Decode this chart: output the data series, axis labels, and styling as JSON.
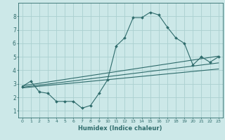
{
  "title": "",
  "xlabel": "Humidex (Indice chaleur)",
  "xlim": [
    -0.5,
    23.5
  ],
  "ylim": [
    0.5,
    9.0
  ],
  "xticks": [
    0,
    1,
    2,
    3,
    4,
    5,
    6,
    7,
    8,
    9,
    10,
    11,
    12,
    13,
    14,
    15,
    16,
    17,
    18,
    19,
    20,
    21,
    22,
    23
  ],
  "yticks": [
    1,
    2,
    3,
    4,
    5,
    6,
    7,
    8
  ],
  "bg_color": "#cce8e8",
  "line_color": "#2e6b6b",
  "grid_color": "#aad0d0",
  "main_line": {
    "x": [
      0,
      1,
      2,
      3,
      4,
      5,
      6,
      7,
      8,
      9,
      10,
      11,
      12,
      13,
      14,
      15,
      16,
      17,
      18,
      19,
      20,
      21,
      22,
      23
    ],
    "y": [
      2.8,
      3.2,
      2.4,
      2.3,
      1.7,
      1.7,
      1.7,
      1.2,
      1.4,
      2.3,
      3.3,
      5.8,
      6.4,
      7.9,
      7.9,
      8.3,
      8.1,
      7.2,
      6.4,
      6.0,
      4.4,
      5.0,
      4.6,
      5.0
    ]
  },
  "trend_lines": [
    {
      "x": [
        0,
        23
      ],
      "y": [
        2.85,
        5.05
      ]
    },
    {
      "x": [
        0,
        23
      ],
      "y": [
        2.75,
        4.55
      ]
    },
    {
      "x": [
        0,
        23
      ],
      "y": [
        2.7,
        4.1
      ]
    }
  ]
}
